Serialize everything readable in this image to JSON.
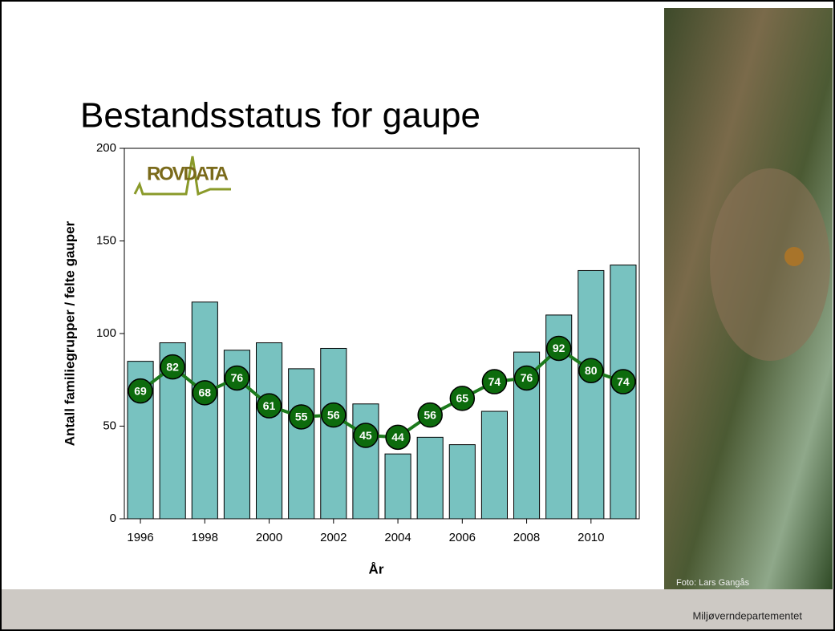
{
  "title": "Bestandsstatus for gaupe",
  "logo": "ROVDATA",
  "photo_credit": "Foto: Lars Gangås",
  "footer": "Miljøverndepartementet",
  "chart_data": {
    "type": "bar_line",
    "x": [
      1996,
      1997,
      1998,
      1999,
      2000,
      2001,
      2002,
      2003,
      2004,
      2005,
      2006,
      2007,
      2008,
      2009,
      2010,
      2011
    ],
    "series": [
      {
        "type": "bar",
        "color": "#78c2c0",
        "values": [
          85,
          95,
          117,
          91,
          95,
          81,
          92,
          62,
          35,
          44,
          40,
          58,
          90,
          110,
          134,
          137
        ]
      },
      {
        "type": "line",
        "color": "#1c7a1c",
        "values": [
          69,
          82,
          68,
          76,
          61,
          55,
          56,
          45,
          44,
          56,
          65,
          74,
          76,
          92,
          80,
          74
        ]
      }
    ],
    "xlabel": "År",
    "ylabel": "Antall familiegrupper / felte gauper",
    "xlim": [
      1995.5,
      2011.5
    ],
    "xticks": [
      1996,
      1998,
      2000,
      2002,
      2004,
      2006,
      2008,
      2010
    ],
    "ylim": [
      0,
      200
    ],
    "yticks": [
      0,
      50,
      100,
      150,
      200
    ]
  }
}
